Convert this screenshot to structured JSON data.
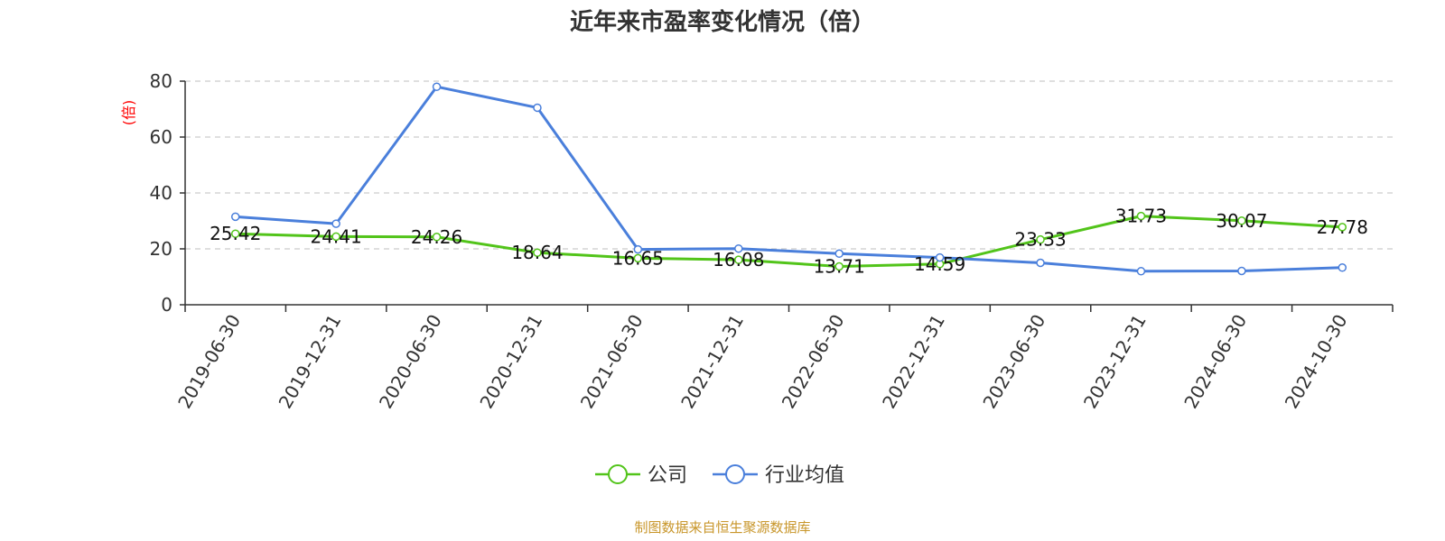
{
  "chart_data": {
    "type": "line",
    "title": "近年来市盈率变化情况（倍）",
    "ylabel": "(倍)",
    "xlabel": "",
    "ylim": [
      0,
      80
    ],
    "yticks": [
      0,
      20,
      40,
      60,
      80
    ],
    "grid": true,
    "legend_position": "bottom-center",
    "categories": [
      "2019-06-30",
      "2019-12-31",
      "2020-06-30",
      "2020-12-31",
      "2021-06-30",
      "2021-12-31",
      "2022-06-30",
      "2022-12-31",
      "2023-06-30",
      "2023-12-31",
      "2024-06-30",
      "2024-10-30"
    ],
    "series": [
      {
        "name": "公司",
        "color": "#52c41a",
        "values": [
          25.42,
          24.41,
          24.26,
          18.64,
          16.65,
          16.08,
          13.71,
          14.59,
          23.33,
          31.73,
          30.07,
          27.78
        ],
        "labels": [
          "25.42",
          "24.41",
          "24.26",
          "18.64",
          "16.65",
          "16.08",
          "13.71",
          "14.59",
          "23.33",
          "31.73",
          "30.07",
          "27.78"
        ]
      },
      {
        "name": "行业均值",
        "color": "#4a7fdb",
        "values": [
          31.5,
          29.0,
          78.0,
          70.5,
          19.8,
          20.1,
          18.3,
          16.9,
          15.0,
          12.0,
          12.1,
          13.3
        ]
      }
    ]
  },
  "colors": {
    "title": "#333333",
    "axis": "#333333",
    "grid": "#cccccc",
    "ylabel": "#ff0000",
    "source": "#c8962a"
  },
  "source_text": "制图数据来自恒生聚源数据库"
}
